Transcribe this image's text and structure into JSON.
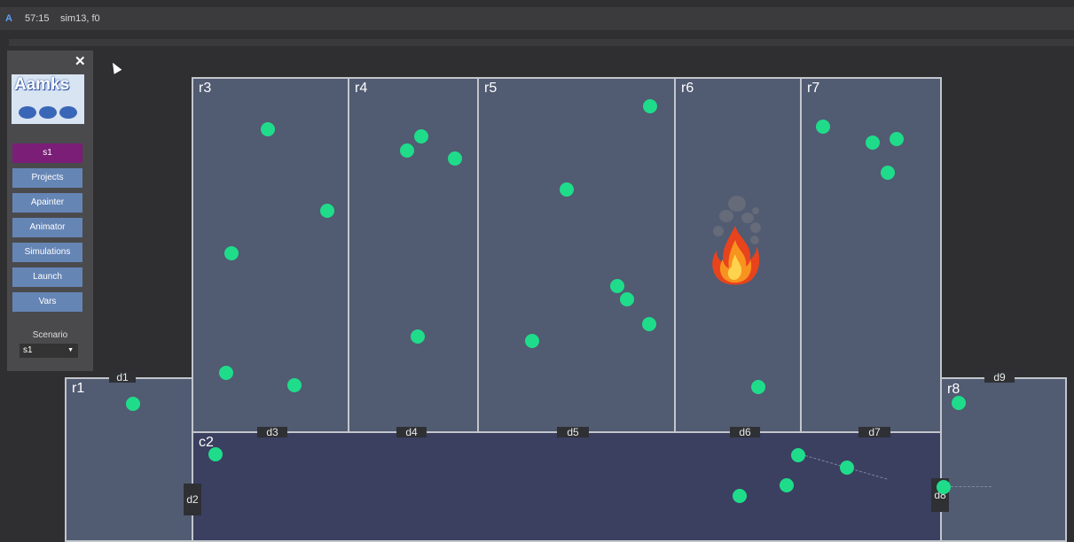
{
  "topbar": {
    "icon_letter": "A",
    "time": "57:15",
    "sim": "sim13, f0"
  },
  "sidebar": {
    "close_glyph": "✕",
    "logo_text": "Aamks",
    "buttons": [
      "s1",
      "Projects",
      "Apainter",
      "Animator",
      "Simulations",
      "Launch",
      "Vars"
    ],
    "active_button": "s1",
    "scenario_label": "Scenario",
    "scenario_value": "s1"
  },
  "rooms": {
    "r1": "r1",
    "r3": "r3",
    "r4": "r4",
    "r5": "r5",
    "r6": "r6",
    "r7": "r7",
    "r8": "r8",
    "c2": "c2"
  },
  "doors": {
    "d1": "d1",
    "d2": "d2",
    "d3": "d3",
    "d4": "d4",
    "d5": "d5",
    "d6": "d6",
    "d7": "d7",
    "d8": "d8",
    "d9": "d9"
  },
  "colors": {
    "agent": "#1fdc8a",
    "room": "#515b72",
    "corridor": "#3b3f60",
    "active_button": "#7a1e78"
  },
  "icons": {
    "close": "close-icon",
    "fire": "fire-icon",
    "smoke": "smoke-icon",
    "cursor": "mouse-cursor-icon"
  }
}
